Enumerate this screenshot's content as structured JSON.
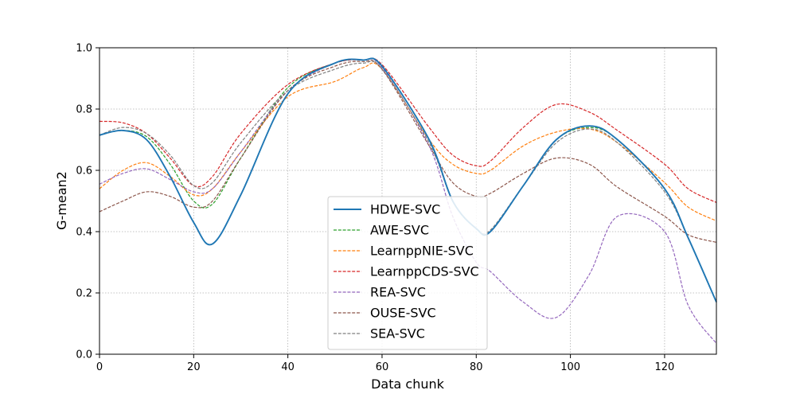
{
  "chart_data": {
    "type": "line",
    "xlabel": "Data chunk",
    "ylabel": "G-mean2",
    "xlim": [
      0,
      131
    ],
    "ylim": [
      0.0,
      1.0
    ],
    "xticks": [
      0,
      20,
      40,
      60,
      80,
      100,
      120
    ],
    "yticks": [
      0.0,
      0.2,
      0.4,
      0.6,
      0.8,
      1.0
    ],
    "xtick_labels": [
      "0",
      "20",
      "40",
      "60",
      "80",
      "100",
      "120"
    ],
    "ytick_labels": [
      "0.0",
      "0.2",
      "0.4",
      "0.6",
      "0.8",
      "1.0"
    ],
    "grid": true,
    "legend_position": "lower-center",
    "x": [
      0,
      5,
      10,
      15,
      20,
      24,
      30,
      40,
      50,
      56,
      60,
      70,
      75,
      80,
      83,
      90,
      97,
      104,
      110,
      120,
      125,
      131
    ],
    "series": [
      {
        "name": "HDWE-SVC",
        "color": "#1f77b4",
        "style": "solid",
        "values": [
          0.715,
          0.73,
          0.7,
          0.58,
          0.43,
          0.36,
          0.52,
          0.85,
          0.95,
          0.96,
          0.94,
          0.7,
          0.5,
          0.41,
          0.4,
          0.55,
          0.7,
          0.745,
          0.7,
          0.54,
          0.38,
          0.17
        ]
      },
      {
        "name": "AWE-SVC",
        "color": "#2ca02c",
        "style": "dashed",
        "values": [
          0.715,
          0.73,
          0.71,
          0.62,
          0.5,
          0.49,
          0.64,
          0.87,
          0.95,
          0.96,
          0.94,
          0.7,
          0.5,
          0.41,
          0.4,
          0.55,
          0.7,
          0.74,
          0.7,
          0.54,
          0.38,
          0.17
        ]
      },
      {
        "name": "LearnppNIE-SVC",
        "color": "#ff7f0e",
        "style": "dashed",
        "values": [
          0.54,
          0.6,
          0.625,
          0.58,
          0.52,
          0.54,
          0.66,
          0.84,
          0.89,
          0.935,
          0.93,
          0.7,
          0.62,
          0.59,
          0.6,
          0.68,
          0.725,
          0.735,
          0.69,
          0.56,
          0.48,
          0.435
        ]
      },
      {
        "name": "LearnppCDS-SVC",
        "color": "#d62728",
        "style": "dashed",
        "values": [
          0.76,
          0.755,
          0.72,
          0.64,
          0.55,
          0.58,
          0.72,
          0.88,
          0.95,
          0.96,
          0.945,
          0.74,
          0.65,
          0.615,
          0.63,
          0.74,
          0.815,
          0.79,
          0.73,
          0.62,
          0.54,
          0.495
        ]
      },
      {
        "name": "REA-SVC",
        "color": "#9467bd",
        "style": "dashed",
        "values": [
          0.555,
          0.59,
          0.605,
          0.57,
          0.53,
          0.54,
          0.66,
          0.86,
          0.95,
          0.96,
          0.935,
          0.68,
          0.45,
          0.3,
          0.27,
          0.17,
          0.12,
          0.26,
          0.45,
          0.4,
          0.16,
          0.035
        ]
      },
      {
        "name": "OUSE-SVC",
        "color": "#8c564b",
        "style": "dashed",
        "values": [
          0.465,
          0.5,
          0.53,
          0.515,
          0.48,
          0.5,
          0.64,
          0.86,
          0.94,
          0.955,
          0.93,
          0.68,
          0.56,
          0.515,
          0.525,
          0.59,
          0.64,
          0.62,
          0.545,
          0.45,
          0.39,
          0.365
        ]
      },
      {
        "name": "SEA-SVC",
        "color": "#7f7f7f",
        "style": "dashed",
        "values": [
          0.715,
          0.74,
          0.72,
          0.65,
          0.55,
          0.56,
          0.69,
          0.86,
          0.93,
          0.95,
          0.93,
          0.69,
          0.5,
          0.41,
          0.405,
          0.55,
          0.69,
          0.735,
          0.69,
          0.53,
          0.38,
          0.17
        ]
      }
    ]
  }
}
